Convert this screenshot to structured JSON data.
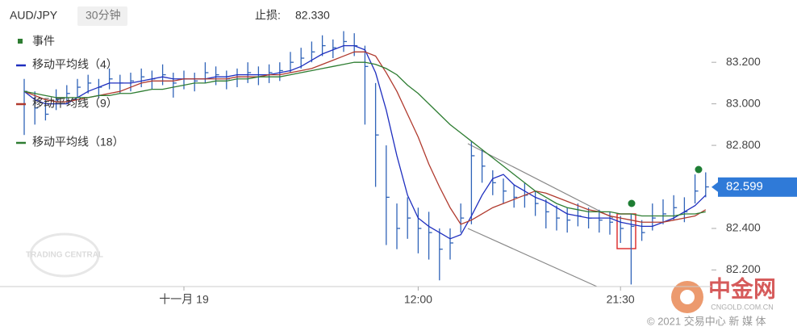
{
  "chart_data": {
    "type": "ohlc",
    "symbol": "AUD/JPY",
    "interval": "30分钟",
    "stop_loss_label": "止损:",
    "stop_loss": {
      "value": 82.33,
      "label": "82.330"
    },
    "last_price": {
      "value": 82.599,
      "label": "82.599"
    },
    "events_label": "事件",
    "categories": [
      null,
      null,
      null,
      null,
      null,
      null,
      null,
      null,
      null,
      null,
      null,
      null,
      null,
      null,
      null,
      "十一月 19",
      null,
      null,
      null,
      null,
      null,
      null,
      null,
      null,
      null,
      null,
      null,
      null,
      null,
      null,
      null,
      null,
      null,
      null,
      null,
      null,
      null,
      "12:00",
      null,
      null,
      null,
      null,
      null,
      null,
      null,
      null,
      null,
      null,
      null,
      null,
      null,
      null,
      null,
      null,
      null,
      null,
      "21:30",
      null,
      null,
      null,
      null,
      null,
      null,
      null,
      null
    ],
    "ohlc": {
      "high": [
        83.12,
        83.06,
        83.02,
        83.07,
        83.09,
        83.12,
        83.14,
        83.12,
        83.17,
        83.14,
        83.15,
        83.17,
        83.16,
        83.19,
        83.15,
        83.16,
        83.15,
        83.2,
        83.18,
        83.16,
        83.17,
        83.2,
        83.18,
        83.19,
        83.2,
        83.25,
        83.27,
        83.3,
        83.33,
        83.31,
        83.35,
        83.34,
        83.28,
        83.1,
        82.8,
        82.52,
        82.55,
        82.5,
        82.48,
        82.4,
        82.4,
        82.52,
        82.82,
        82.78,
        82.68,
        82.64,
        82.61,
        82.62,
        82.58,
        82.54,
        82.51,
        82.5,
        82.52,
        82.5,
        82.49,
        82.48,
        82.46,
        82.47,
        82.44,
        82.52,
        82.54,
        82.56,
        82.55,
        82.66,
        82.67
      ],
      "low": [
        82.85,
        82.9,
        82.92,
        82.97,
        83.0,
        83.03,
        83.05,
        83.03,
        83.07,
        83.05,
        83.06,
        83.08,
        83.07,
        83.09,
        83.03,
        83.07,
        83.06,
        83.1,
        83.09,
        83.07,
        83.08,
        83.1,
        83.09,
        83.1,
        83.11,
        83.15,
        83.17,
        83.2,
        83.23,
        83.22,
        83.25,
        83.23,
        82.9,
        82.6,
        82.32,
        82.3,
        82.35,
        82.28,
        82.25,
        82.15,
        82.25,
        82.38,
        82.42,
        82.62,
        82.56,
        82.52,
        82.5,
        82.5,
        82.46,
        82.4,
        82.39,
        82.38,
        82.41,
        82.4,
        82.38,
        82.37,
        82.33,
        82.13,
        82.34,
        82.39,
        82.42,
        82.44,
        82.43,
        82.52,
        82.55
      ],
      "close": [
        83.06,
        82.98,
        82.95,
        83.02,
        83.05,
        83.08,
        83.1,
        83.08,
        83.12,
        83.1,
        83.11,
        83.13,
        83.12,
        83.14,
        83.1,
        83.12,
        83.11,
        83.15,
        83.14,
        83.12,
        83.13,
        83.15,
        83.14,
        83.15,
        83.16,
        83.2,
        83.22,
        83.25,
        83.28,
        83.27,
        83.3,
        83.28,
        83.18,
        82.85,
        82.55,
        82.4,
        82.45,
        82.4,
        82.38,
        82.3,
        82.33,
        82.45,
        82.75,
        82.7,
        82.62,
        82.58,
        82.55,
        82.56,
        82.52,
        82.48,
        82.45,
        82.44,
        82.46,
        82.45,
        82.44,
        82.43,
        82.4,
        82.41,
        82.38,
        82.45,
        82.47,
        82.5,
        82.48,
        82.58,
        82.6
      ]
    },
    "bar_color": "#2f63b8",
    "series": [
      {
        "name": "移动平均线（4）",
        "color": "#1f2fbf",
        "values": [
          83.06,
          83.02,
          83.0,
          83.0,
          83.0,
          83.03,
          83.06,
          83.08,
          83.1,
          83.1,
          83.1,
          83.11,
          83.12,
          83.13,
          83.12,
          83.12,
          83.12,
          83.12,
          83.13,
          83.13,
          83.14,
          83.14,
          83.14,
          83.14,
          83.15,
          83.16,
          83.18,
          83.21,
          83.24,
          83.26,
          83.28,
          83.28,
          83.26,
          83.15,
          82.97,
          82.75,
          82.56,
          82.45,
          82.41,
          82.38,
          82.35,
          82.37,
          82.46,
          82.56,
          82.64,
          82.66,
          82.61,
          82.58,
          82.55,
          82.53,
          82.5,
          82.47,
          82.46,
          82.45,
          82.45,
          82.45,
          82.43,
          82.42,
          82.41,
          82.41,
          82.43,
          82.45,
          82.48,
          82.51,
          82.56
        ]
      },
      {
        "name": "移动平均线（9）",
        "color": "#b03a2e",
        "values": [
          83.06,
          83.04,
          83.02,
          83.01,
          83.01,
          83.02,
          83.03,
          83.04,
          83.05,
          83.06,
          83.08,
          83.1,
          83.11,
          83.11,
          83.11,
          83.12,
          83.12,
          83.12,
          83.12,
          83.12,
          83.13,
          83.13,
          83.13,
          83.14,
          83.14,
          83.15,
          83.16,
          83.17,
          83.19,
          83.21,
          83.23,
          83.25,
          83.25,
          83.23,
          83.15,
          83.06,
          82.95,
          82.84,
          82.71,
          82.6,
          82.5,
          82.42,
          82.44,
          82.47,
          82.5,
          82.52,
          82.54,
          82.56,
          82.58,
          82.57,
          82.55,
          82.53,
          82.51,
          82.49,
          82.48,
          82.46,
          82.45,
          82.44,
          82.43,
          82.43,
          82.43,
          82.44,
          82.45,
          82.46,
          82.49
        ]
      },
      {
        "name": "移动平均线（18）",
        "color": "#2e7d32",
        "values": [
          83.06,
          83.05,
          83.04,
          83.03,
          83.03,
          83.03,
          83.03,
          83.04,
          83.04,
          83.05,
          83.05,
          83.06,
          83.07,
          83.07,
          83.08,
          83.09,
          83.1,
          83.1,
          83.11,
          83.11,
          83.12,
          83.12,
          83.13,
          83.13,
          83.13,
          83.14,
          83.15,
          83.16,
          83.17,
          83.18,
          83.19,
          83.2,
          83.2,
          83.19,
          83.17,
          83.14,
          83.09,
          83.05,
          83.0,
          82.95,
          82.9,
          82.86,
          82.82,
          82.78,
          82.74,
          82.7,
          82.66,
          82.62,
          82.58,
          82.55,
          82.52,
          82.5,
          82.49,
          82.48,
          82.48,
          82.48,
          82.47,
          82.47,
          82.46,
          82.46,
          82.46,
          82.46,
          82.47,
          82.47,
          82.48
        ]
      }
    ],
    "ylim": [
      82.12,
      83.5
    ],
    "yticks": [
      {
        "value": 83.2,
        "label": "83.200"
      },
      {
        "value": 83.0,
        "label": "83.000"
      },
      {
        "value": 82.8,
        "label": "82.800"
      },
      {
        "value": 82.4,
        "label": "82.400"
      },
      {
        "value": 82.2,
        "label": "82.200"
      }
    ]
  },
  "watermarks": {
    "trading_central": "TRADING CENTRAL",
    "brand": "中金网",
    "brand_url": "CNGOLD.COM.CN",
    "copyright": "© 2021 交易中心 新 媒 体"
  }
}
